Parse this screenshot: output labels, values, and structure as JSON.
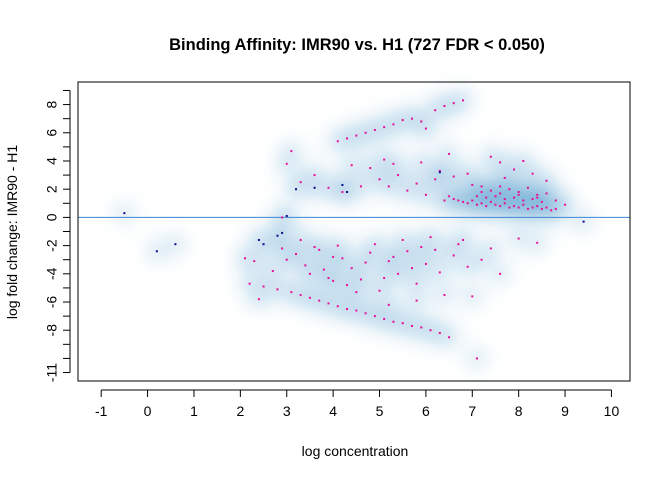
{
  "chart_data": {
    "type": "scatter",
    "title": "Binding Affinity: IMR90 vs. H1 (727 FDR < 0.050)",
    "xlabel": "log concentration",
    "ylabel": "log fold change: IMR90 - H1",
    "xlim": [
      -1.5,
      10.4
    ],
    "ylim": [
      -11.6,
      9.6
    ],
    "x_ticks": [
      -1,
      0,
      1,
      2,
      3,
      4,
      5,
      6,
      7,
      8,
      9,
      10
    ],
    "y_ticks": [
      -11,
      -10,
      -9,
      -8,
      -7,
      -6,
      -5,
      -4,
      -3,
      -2,
      -1,
      0,
      1,
      2,
      3,
      4,
      5,
      6,
      7,
      8,
      9
    ],
    "y_tick_labels": [
      "-11",
      "",
      "",
      "-8",
      "",
      "-6",
      "",
      "-4",
      "",
      "-2",
      "",
      "0",
      "",
      "2",
      "",
      "4",
      "",
      "6",
      "",
      "8",
      ""
    ],
    "reference_line_y": 0,
    "grid": false,
    "colors": {
      "density": "#2b86c1",
      "significant": "#e6109a",
      "nonsignificant": "#0a0a8c",
      "reference_line": "#3a86d6"
    },
    "series": [
      {
        "name": "",
        "color": "#e6109a",
        "points": [
          [
            2.2,
            -4.7
          ],
          [
            2.5,
            -4.9
          ],
          [
            2.8,
            -5.1
          ],
          [
            3.1,
            -5.3
          ],
          [
            3.3,
            -5.5
          ],
          [
            3.5,
            -5.7
          ],
          [
            3.7,
            -5.9
          ],
          [
            3.9,
            -6.1
          ],
          [
            4.1,
            -6.3
          ],
          [
            4.3,
            -6.5
          ],
          [
            4.5,
            -6.6
          ],
          [
            4.7,
            -6.8
          ],
          [
            4.9,
            -7.0
          ],
          [
            5.1,
            -7.2
          ],
          [
            5.3,
            -7.4
          ],
          [
            5.5,
            -7.5
          ],
          [
            5.7,
            -7.7
          ],
          [
            5.9,
            -7.8
          ],
          [
            6.1,
            -8.0
          ],
          [
            6.3,
            -8.2
          ],
          [
            6.5,
            -8.5
          ],
          [
            2.4,
            -5.8
          ],
          [
            2.3,
            -3.1
          ],
          [
            2.1,
            -2.9
          ],
          [
            2.7,
            -3.8
          ],
          [
            3.0,
            -3.0
          ],
          [
            3.2,
            -2.6
          ],
          [
            3.4,
            -3.4
          ],
          [
            3.6,
            -2.1
          ],
          [
            3.8,
            -3.7
          ],
          [
            4.0,
            -4.5
          ],
          [
            4.2,
            -2.9
          ],
          [
            4.4,
            -3.6
          ],
          [
            4.6,
            -4.4
          ],
          [
            4.8,
            -2.5
          ],
          [
            5.0,
            -5.2
          ],
          [
            5.2,
            -3.1
          ],
          [
            5.4,
            -4.0
          ],
          [
            5.6,
            -2.4
          ],
          [
            5.8,
            -4.7
          ],
          [
            6.0,
            -3.3
          ],
          [
            6.2,
            -2.3
          ],
          [
            6.4,
            -5.5
          ],
          [
            4.1,
            -2.0
          ],
          [
            4.9,
            -1.9
          ],
          [
            5.5,
            -1.6
          ],
          [
            6.1,
            -1.4
          ],
          [
            6.8,
            -1.6
          ],
          [
            7.2,
            -3.0
          ],
          [
            7.6,
            -4.0
          ],
          [
            7.0,
            -5.6
          ],
          [
            5.8,
            -5.9
          ],
          [
            5.2,
            -6.2
          ],
          [
            4.5,
            -5.3
          ],
          [
            3.9,
            -4.3
          ],
          [
            3.5,
            -4.0
          ],
          [
            2.9,
            -2.2
          ],
          [
            6.6,
            -2.7
          ],
          [
            6.9,
            -3.5
          ],
          [
            8.0,
            -1.5
          ],
          [
            8.4,
            -1.8
          ],
          [
            7.1,
            -10.0
          ],
          [
            4.0,
            -2.8
          ],
          [
            4.7,
            -3.2
          ],
          [
            5.3,
            -2.8
          ],
          [
            5.9,
            -2.1
          ],
          [
            6.3,
            -3.9
          ],
          [
            3.3,
            -1.6
          ],
          [
            3.7,
            -2.3
          ],
          [
            4.3,
            -4.8
          ],
          [
            5.1,
            -4.3
          ],
          [
            5.7,
            -3.6
          ],
          [
            6.7,
            -1.9
          ],
          [
            7.4,
            -2.2
          ],
          [
            2.9,
            0.0
          ],
          [
            3.0,
            3.8
          ],
          [
            3.1,
            4.7
          ],
          [
            3.3,
            2.5
          ],
          [
            3.6,
            3.0
          ],
          [
            3.9,
            2.1
          ],
          [
            4.1,
            5.4
          ],
          [
            4.3,
            5.6
          ],
          [
            4.5,
            5.8
          ],
          [
            4.7,
            6.0
          ],
          [
            4.9,
            6.2
          ],
          [
            5.1,
            6.4
          ],
          [
            5.3,
            6.6
          ],
          [
            5.5,
            6.9
          ],
          [
            5.7,
            7.0
          ],
          [
            6.2,
            7.6
          ],
          [
            6.4,
            7.9
          ],
          [
            6.6,
            8.1
          ],
          [
            6.8,
            8.3
          ],
          [
            5.9,
            6.8
          ],
          [
            6.0,
            6.3
          ],
          [
            6.3,
            3.3
          ],
          [
            6.5,
            4.5
          ],
          [
            4.8,
            3.5
          ],
          [
            5.0,
            2.7
          ],
          [
            5.2,
            2.2
          ],
          [
            5.4,
            3.0
          ],
          [
            5.6,
            1.9
          ],
          [
            5.8,
            2.4
          ],
          [
            6.0,
            1.6
          ],
          [
            6.2,
            2.7
          ],
          [
            6.4,
            1.2
          ],
          [
            4.6,
            2.2
          ],
          [
            4.4,
            3.7
          ],
          [
            4.2,
            1.8
          ],
          [
            5.1,
            4.1
          ],
          [
            5.3,
            3.8
          ],
          [
            5.9,
            3.9
          ],
          [
            6.6,
            2.9
          ],
          [
            7.0,
            2.3
          ],
          [
            7.2,
            2.2
          ],
          [
            7.4,
            1.9
          ],
          [
            7.6,
            2.2
          ],
          [
            7.8,
            2.0
          ],
          [
            8.0,
            1.8
          ],
          [
            8.2,
            2.1
          ],
          [
            8.4,
            1.6
          ],
          [
            8.6,
            1.7
          ],
          [
            8.8,
            1.2
          ],
          [
            9.0,
            0.9
          ],
          [
            7.4,
            4.3
          ],
          [
            7.6,
            3.9
          ],
          [
            8.1,
            4.0
          ],
          [
            8.3,
            3.1
          ],
          [
            8.6,
            2.6
          ],
          [
            7.9,
            3.4
          ],
          [
            7.7,
            2.8
          ],
          [
            6.9,
            3.1
          ],
          [
            6.5,
            1.5
          ],
          [
            6.6,
            1.3
          ],
          [
            6.7,
            1.2
          ],
          [
            6.8,
            1.1
          ],
          [
            6.9,
            1.0
          ],
          [
            7.0,
            1.2
          ],
          [
            7.1,
            0.9
          ],
          [
            7.2,
            1.0
          ],
          [
            7.3,
            0.8
          ],
          [
            7.4,
            1.1
          ],
          [
            7.5,
            0.9
          ],
          [
            7.6,
            0.8
          ],
          [
            7.7,
            1.0
          ],
          [
            7.8,
            0.7
          ],
          [
            7.9,
            0.8
          ],
          [
            8.0,
            0.7
          ],
          [
            8.1,
            0.9
          ],
          [
            8.2,
            0.6
          ],
          [
            8.3,
            0.7
          ],
          [
            8.4,
            0.8
          ],
          [
            8.5,
            0.6
          ],
          [
            8.6,
            0.7
          ],
          [
            8.7,
            0.5
          ],
          [
            8.8,
            0.6
          ],
          [
            7.1,
            1.5
          ],
          [
            7.3,
            1.4
          ],
          [
            7.5,
            1.5
          ],
          [
            7.7,
            1.3
          ],
          [
            7.9,
            1.4
          ],
          [
            8.1,
            1.2
          ],
          [
            8.3,
            1.3
          ],
          [
            8.5,
            1.1
          ],
          [
            7.2,
            1.8
          ],
          [
            7.6,
            1.7
          ],
          [
            8.0,
            1.6
          ],
          [
            8.4,
            1.4
          ]
        ]
      },
      {
        "name": "",
        "color": "#0a0a8c",
        "points": [
          [
            -0.5,
            0.3
          ],
          [
            0.2,
            -2.4
          ],
          [
            0.6,
            -1.9
          ],
          [
            2.4,
            -1.6
          ],
          [
            2.5,
            -1.9
          ],
          [
            2.8,
            -1.3
          ],
          [
            2.9,
            -1.1
          ],
          [
            3.0,
            0.1
          ],
          [
            3.2,
            2.0
          ],
          [
            3.6,
            2.1
          ],
          [
            4.2,
            2.3
          ],
          [
            4.3,
            1.8
          ],
          [
            6.3,
            3.2
          ],
          [
            9.4,
            -0.3
          ]
        ]
      }
    ]
  }
}
